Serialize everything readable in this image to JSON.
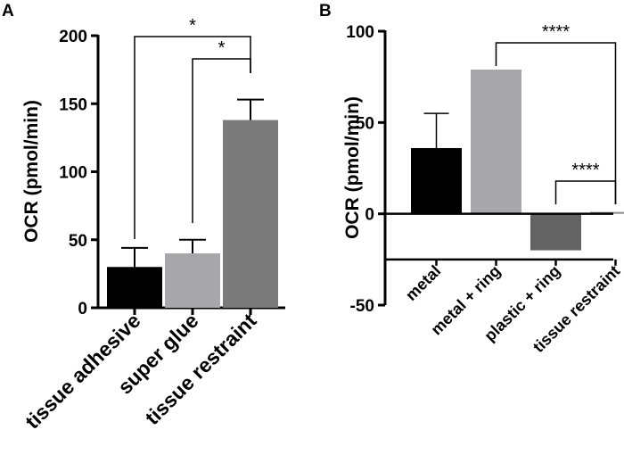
{
  "chart_data": [
    {
      "panel": "A",
      "type": "bar",
      "ylabel": "OCR (pmol/min)",
      "xlabel": "",
      "categories": [
        "tissue adhesive",
        "super glue",
        "tissue restraint"
      ],
      "values": [
        30,
        40,
        138
      ],
      "errors": [
        14,
        10,
        15
      ],
      "colors": [
        "#000000",
        "#a7a7ab",
        "#7a7a7a"
      ],
      "ylim": [
        0,
        200
      ],
      "yticks": [
        "0",
        "50",
        "100",
        "150",
        "200"
      ],
      "significance": [
        {
          "from": 0,
          "to": 2,
          "label": "*"
        },
        {
          "from": 1,
          "to": 2,
          "label": "*"
        }
      ]
    },
    {
      "panel": "B",
      "type": "bar",
      "ylabel": "OCR (pmol/min)",
      "xlabel": "",
      "categories": [
        "metal",
        "metal + ring",
        "plastic + ring",
        "tissue restraint"
      ],
      "values": [
        36,
        79,
        -20,
        1
      ],
      "errors": [
        19,
        0,
        0,
        0
      ],
      "colors": [
        "#000000",
        "#a7a7ab",
        "#636363",
        "#8c8c8c"
      ],
      "ylim": [
        -50,
        100
      ],
      "yticks": [
        "-50",
        "0",
        "50",
        "100"
      ],
      "significance": [
        {
          "from": 1,
          "to": 3,
          "label": "****"
        },
        {
          "from": 2,
          "to": 3,
          "label": "****"
        }
      ]
    }
  ]
}
